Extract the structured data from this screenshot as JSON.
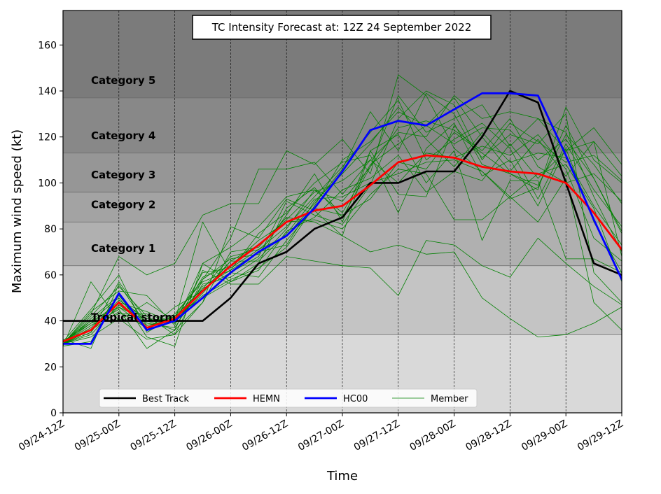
{
  "chart_data": {
    "type": "line",
    "title": "TC Intensity Forecast at: 12Z 24 September 2022",
    "xlabel": "Time",
    "ylabel": "Maximum wind speed (kt)",
    "xlim": [
      0,
      60
    ],
    "ylim": [
      0,
      175
    ],
    "x_ticks": [
      {
        "x": 0,
        "label": "09/24-12Z"
      },
      {
        "x": 6,
        "label": "09/25-00Z"
      },
      {
        "x": 12,
        "label": "09/25-12Z"
      },
      {
        "x": 18,
        "label": "09/26-00Z"
      },
      {
        "x": 24,
        "label": "09/26-12Z"
      },
      {
        "x": 30,
        "label": "09/27-00Z"
      },
      {
        "x": 36,
        "label": "09/27-12Z"
      },
      {
        "x": 42,
        "label": "09/28-00Z"
      },
      {
        "x": 48,
        "label": "09/28-12Z"
      },
      {
        "x": 54,
        "label": "09/29-00Z"
      },
      {
        "x": 60,
        "label": "09/29-12Z"
      }
    ],
    "y_ticks": [
      0,
      20,
      40,
      60,
      80,
      100,
      120,
      140,
      160
    ],
    "grid": "vertical dashed lines at x ticks",
    "category_bands": [
      {
        "label": "",
        "from": 0,
        "to": 34,
        "color": "#d9d9d9"
      },
      {
        "label": "Tropical storm",
        "from": 34,
        "to": 64,
        "color": "#c4c4c4"
      },
      {
        "label": "Category 1",
        "from": 64,
        "to": 83,
        "color": "#b0b0b0"
      },
      {
        "label": "Category 2",
        "from": 83,
        "to": 96,
        "color": "#a3a3a3"
      },
      {
        "label": "Category 3",
        "from": 96,
        "to": 113,
        "color": "#969696"
      },
      {
        "label": "Category 4",
        "from": 113,
        "to": 137,
        "color": "#888888"
      },
      {
        "label": "Category 5",
        "from": 137,
        "to": 175,
        "color": "#7b7b7b"
      }
    ],
    "legend": {
      "position": "bottom",
      "entries": [
        {
          "label": "Best Track",
          "color": "#000000"
        },
        {
          "label": "HEMN",
          "color": "#ff0000"
        },
        {
          "label": "HC00",
          "color": "#0000ff"
        },
        {
          "label": "Member",
          "color": "#008000"
        }
      ]
    },
    "series": [
      {
        "name": "Member",
        "color": "#008000",
        "width": 0.8,
        "x": [
          0,
          3,
          6,
          9,
          12,
          15,
          18,
          21,
          24,
          27,
          30,
          33,
          36,
          39,
          42,
          45,
          48,
          51,
          54,
          57,
          60
        ],
        "y": [
          30,
          43,
          68,
          60,
          65,
          86,
          91,
          91,
          114,
          108,
          119,
          104,
          147,
          138,
          115,
          105,
          93,
          98,
          125,
          102,
          78
        ]
      },
      {
        "name": "Member",
        "color": "#008000",
        "width": 0.8,
        "x": [
          0,
          3,
          6,
          9,
          12,
          15,
          18,
          21,
          24,
          27,
          30,
          33,
          36,
          39,
          42,
          45,
          48,
          51,
          54,
          57,
          60
        ],
        "y": [
          29,
          57,
          40,
          48,
          40,
          61,
          63,
          71,
          77,
          91,
          106,
          131,
          114,
          139,
          130,
          108,
          104,
          97,
          133,
          110,
          100
        ]
      },
      {
        "name": "Member",
        "color": "#008000",
        "width": 0.8,
        "x": [
          0,
          3,
          6,
          9,
          12,
          15,
          18,
          21,
          24,
          27,
          30,
          33,
          36,
          39,
          42,
          45,
          48,
          51,
          54,
          57,
          60
        ],
        "y": [
          32,
          28,
          56,
          38,
          40,
          83,
          61,
          68,
          92,
          86,
          82,
          99,
          128,
          140,
          134,
          110,
          126,
          118,
          109,
          112,
          101
        ]
      },
      {
        "name": "Member",
        "color": "#008000",
        "width": 0.8,
        "x": [
          0,
          3,
          6,
          9,
          12,
          15,
          18,
          21,
          24,
          27,
          30,
          33,
          36,
          39,
          42,
          45,
          48,
          51,
          54,
          57,
          60
        ],
        "y": [
          31,
          45,
          60,
          35,
          42,
          58,
          76,
          106,
          106,
          109,
          95,
          110,
          122,
          120,
          138,
          128,
          131,
          128,
          114,
          124,
          108
        ]
      },
      {
        "name": "Member",
        "color": "#008000",
        "width": 0.8,
        "x": [
          0,
          3,
          6,
          9,
          12,
          15,
          18,
          21,
          24,
          27,
          30,
          33,
          36,
          39,
          42,
          45,
          48,
          51,
          54,
          57,
          60
        ],
        "y": [
          30,
          44,
          53,
          51,
          38,
          65,
          57,
          65,
          89,
          98,
          85,
          107,
          138,
          122,
          128,
          134,
          116,
          128,
          122,
          94,
          70
        ]
      },
      {
        "name": "Member",
        "color": "#008000",
        "width": 0.8,
        "x": [
          0,
          3,
          6,
          9,
          12,
          15,
          18,
          21,
          24,
          27,
          30,
          33,
          36,
          39,
          42,
          45,
          48,
          51,
          54,
          57,
          60
        ],
        "y": [
          30,
          35,
          57,
          40,
          36,
          48,
          81,
          76,
          93,
          88,
          77,
          70,
          73,
          69,
          70,
          50,
          41,
          33,
          34,
          39,
          46
        ]
      },
      {
        "name": "Member",
        "color": "#008000",
        "width": 0.8,
        "x": [
          0,
          3,
          6,
          9,
          12,
          15,
          18,
          21,
          24,
          27,
          30,
          33,
          36,
          39,
          42,
          45,
          48,
          51,
          54,
          57,
          60
        ],
        "y": [
          30,
          38,
          45,
          28,
          36,
          62,
          56,
          56,
          68,
          66,
          64,
          63,
          51,
          75,
          73,
          64,
          59,
          76,
          65,
          55,
          47
        ]
      },
      {
        "name": "Member",
        "color": "#008000",
        "width": 0.8,
        "x": [
          0,
          3,
          6,
          9,
          12,
          15,
          18,
          21,
          24,
          27,
          30,
          33,
          36,
          39,
          42,
          45,
          48,
          51,
          54,
          57,
          60
        ],
        "y": [
          30,
          33,
          41,
          32,
          34,
          48,
          70,
          72,
          85,
          83,
          77,
          114,
          121,
          100,
          114,
          75,
          101,
          101,
          67,
          67,
          61
        ]
      },
      {
        "name": "Member",
        "color": "#008000",
        "width": 0.8,
        "x": [
          0,
          3,
          6,
          9,
          12,
          15,
          18,
          21,
          24,
          27,
          30,
          33,
          36,
          39,
          42,
          45,
          48,
          51,
          54,
          57,
          60
        ],
        "y": [
          30,
          36,
          46,
          37,
          42,
          54,
          68,
          71,
          81,
          94,
          107,
          122,
          136,
          110,
          119,
          126,
          115,
          93,
          117,
          97,
          81
        ]
      },
      {
        "name": "Member",
        "color": "#008000",
        "width": 0.8,
        "x": [
          0,
          3,
          6,
          9,
          12,
          15,
          18,
          21,
          24,
          27,
          30,
          33,
          36,
          39,
          42,
          45,
          48,
          51,
          54,
          57,
          60
        ],
        "y": [
          29,
          31,
          52,
          33,
          29,
          65,
          72,
          81,
          94,
          97,
          92,
          107,
          124,
          127,
          123,
          114,
          128,
          107,
          100,
          104,
          92
        ]
      },
      {
        "name": "Member",
        "color": "#008000",
        "width": 0.8,
        "x": [
          0,
          3,
          6,
          9,
          12,
          15,
          18,
          21,
          24,
          27,
          30,
          33,
          36,
          39,
          42,
          45,
          48,
          51,
          54,
          57,
          60
        ],
        "y": [
          31,
          40,
          50,
          36,
          46,
          53,
          66,
          66,
          78,
          93,
          94,
          100,
          104,
          109,
          110,
          105,
          94,
          104,
          108,
          89,
          57
        ]
      },
      {
        "name": "Member",
        "color": "#008000",
        "width": 0.8,
        "x": [
          0,
          3,
          6,
          9,
          12,
          15,
          18,
          21,
          24,
          27,
          30,
          33,
          36,
          39,
          42,
          45,
          48,
          51,
          54,
          57,
          60
        ],
        "y": [
          30,
          39,
          43,
          43,
          39,
          59,
          64,
          75,
          83,
          84,
          80,
          95,
          106,
          104,
          84,
          84,
          94,
          83,
          102,
          48,
          36
        ]
      },
      {
        "name": "Member",
        "color": "#008000",
        "width": 0.8,
        "x": [
          0,
          3,
          6,
          9,
          12,
          15,
          18,
          21,
          24,
          27,
          30,
          33,
          36,
          39,
          42,
          45,
          48,
          51,
          54,
          57,
          60
        ],
        "y": [
          30,
          42,
          55,
          42,
          34,
          58,
          67,
          69,
          86,
          104,
          83,
          114,
          95,
          94,
          125,
          111,
          121,
          117,
          130,
          61,
          48
        ]
      },
      {
        "name": "Member",
        "color": "#008000",
        "width": 0.8,
        "x": [
          0,
          3,
          6,
          9,
          12,
          15,
          18,
          21,
          24,
          27,
          30,
          33,
          36,
          39,
          42,
          45,
          48,
          51,
          54,
          57,
          60
        ],
        "y": [
          30,
          37,
          49,
          41,
          40,
          55,
          62,
          78,
          87,
          100,
          109,
          112,
          87,
          115,
          126,
          103,
          110,
          90,
          115,
          83,
          61
        ]
      },
      {
        "name": "Member",
        "color": "#008000",
        "width": 0.8,
        "x": [
          0,
          3,
          6,
          9,
          12,
          15,
          18,
          21,
          24,
          27,
          30,
          33,
          36,
          39,
          42,
          45,
          48,
          51,
          54,
          57,
          60
        ],
        "y": [
          30,
          34,
          47,
          38,
          41,
          51,
          58,
          63,
          72,
          90,
          110,
          118,
          131,
          125,
          117,
          124,
          123,
          110,
          119,
          102,
          79
        ]
      },
      {
        "name": "Member",
        "color": "#008000",
        "width": 0.8,
        "x": [
          0,
          3,
          6,
          9,
          12,
          15,
          18,
          21,
          24,
          27,
          30,
          33,
          36,
          39,
          42,
          45,
          48,
          51,
          54,
          57,
          60
        ],
        "y": [
          30,
          41,
          51,
          39,
          37,
          56,
          59,
          67,
          80,
          97,
          87,
          108,
          117,
          125,
          137,
          120,
          105,
          119,
          103,
          118,
          68
        ]
      },
      {
        "name": "Member",
        "color": "#008000",
        "width": 0.8,
        "x": [
          0,
          3,
          6,
          9,
          12,
          15,
          18,
          21,
          24,
          27,
          30,
          33,
          36,
          39,
          42,
          45,
          48,
          51,
          54,
          57,
          60
        ],
        "y": [
          30,
          36,
          44,
          37,
          42,
          50,
          57,
          62,
          79,
          85,
          97,
          102,
          112,
          96,
          105,
          101,
          117,
          102,
          114,
          118,
          103
        ]
      },
      {
        "name": "Member",
        "color": "#008000",
        "width": 0.8,
        "x": [
          0,
          3,
          6,
          9,
          12,
          15,
          18,
          21,
          24,
          27,
          30,
          33,
          36,
          39,
          42,
          45,
          48,
          51,
          54,
          57,
          60
        ],
        "y": [
          31,
          39,
          48,
          44,
          39,
          54,
          61,
          59,
          75,
          89,
          86,
          93,
          109,
          106,
          122,
          113,
          104,
          99,
          121,
          108,
          91
        ]
      },
      {
        "name": "Member",
        "color": "#008000",
        "width": 0.8,
        "x": [
          0,
          3,
          6,
          9,
          12,
          15,
          18,
          21,
          24,
          27,
          30,
          33,
          36,
          39,
          42,
          45,
          48,
          51,
          54,
          57,
          60
        ],
        "y": [
          30,
          35,
          51,
          36,
          43,
          57,
          62,
          70,
          73,
          92,
          104,
          117,
          133,
          119,
          107,
          122,
          109,
          113,
          111,
          90,
          73
        ]
      },
      {
        "name": "Member",
        "color": "#008000",
        "width": 0.8,
        "x": [
          0,
          3,
          6,
          9,
          12,
          15,
          18,
          21,
          24,
          27,
          30,
          33,
          36,
          39,
          42,
          45,
          48,
          51,
          54,
          57,
          60
        ],
        "y": [
          30,
          40,
          46,
          40,
          40,
          52,
          66,
          73,
          84,
          96,
          101,
          110,
          100,
          113,
          111,
          116,
          112,
          121,
          106,
          76,
          66
        ]
      },
      {
        "name": "Best Track",
        "color": "#000000",
        "width": 2.6,
        "x": [
          0,
          3,
          6,
          9,
          12,
          15,
          18,
          21,
          24,
          27,
          30,
          33,
          36,
          39,
          42,
          45,
          48,
          51,
          54,
          57,
          60
        ],
        "y": [
          40,
          40,
          40,
          40,
          40,
          40,
          50,
          65,
          70,
          80,
          85,
          100,
          100,
          105,
          105,
          120,
          140,
          135,
          100,
          65,
          60
        ]
      },
      {
        "name": "HEMN",
        "color": "#ff0000",
        "width": 2.8,
        "x": [
          0,
          3,
          6,
          9,
          12,
          15,
          18,
          21,
          24,
          27,
          30,
          33,
          36,
          39,
          42,
          45,
          48,
          51,
          54,
          57,
          60
        ],
        "y": [
          31,
          36,
          48,
          37,
          41,
          53,
          64,
          73,
          83,
          88,
          90,
          99,
          109,
          112,
          111,
          107,
          105,
          104,
          100,
          87,
          71
        ]
      },
      {
        "name": "HC00",
        "color": "#0000ff",
        "width": 2.8,
        "x": [
          0,
          3,
          6,
          9,
          12,
          15,
          18,
          21,
          24,
          27,
          30,
          33,
          36,
          39,
          42,
          45,
          48,
          51,
          54,
          57,
          60
        ],
        "y": [
          30,
          30,
          52,
          36,
          40,
          50,
          61,
          70,
          77,
          89,
          105,
          123,
          127,
          125,
          132,
          139,
          139,
          138,
          112,
          84,
          58
        ]
      }
    ]
  }
}
